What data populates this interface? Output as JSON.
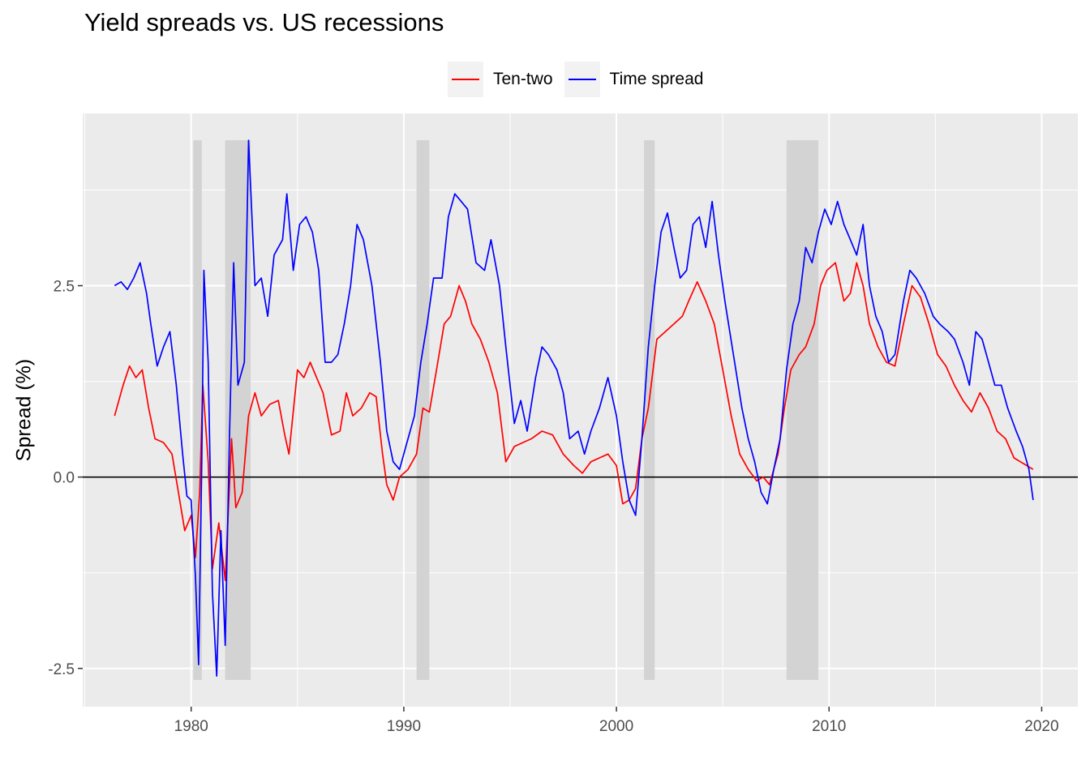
{
  "chart_data": {
    "type": "line",
    "title": "Yield spreads vs. US recessions",
    "ylabel": "Spread (%)",
    "xlabel": "",
    "xlim": [
      1974.9,
      2021.7
    ],
    "ylim": [
      -3.0,
      4.75
    ],
    "x_ticks": [
      1980,
      1990,
      2000,
      2010,
      2020
    ],
    "y_ticks": [
      -2.5,
      0.0,
      2.5
    ],
    "x_tick_labels": [
      "1980",
      "1990",
      "2000",
      "2010",
      "2020"
    ],
    "y_tick_labels": [
      "-2.5",
      "0.0",
      "2.5"
    ],
    "grid": true,
    "legend_position": "top",
    "hline_y": 0,
    "recessions": [
      {
        "start": 1980.1,
        "end": 1980.5
      },
      {
        "start": 1981.6,
        "end": 1982.8
      },
      {
        "start": 1990.6,
        "end": 1991.2
      },
      {
        "start": 2001.3,
        "end": 2001.8
      },
      {
        "start": 2008.0,
        "end": 2009.5
      }
    ],
    "recession_band": [
      -2.65,
      4.4
    ],
    "series": [
      {
        "name": "Ten-two",
        "color": "#ff0000",
        "points": [
          [
            1976.4,
            0.8
          ],
          [
            1976.8,
            1.2
          ],
          [
            1977.1,
            1.45
          ],
          [
            1977.4,
            1.3
          ],
          [
            1977.7,
            1.4
          ],
          [
            1978.0,
            0.9
          ],
          [
            1978.3,
            0.5
          ],
          [
            1978.7,
            0.45
          ],
          [
            1979.1,
            0.3
          ],
          [
            1979.4,
            -0.2
          ],
          [
            1979.7,
            -0.7
          ],
          [
            1980.0,
            -0.5
          ],
          [
            1980.2,
            -1.05
          ],
          [
            1980.4,
            -0.2
          ],
          [
            1980.55,
            1.2
          ],
          [
            1980.8,
            0.2
          ],
          [
            1981.0,
            -1.2
          ],
          [
            1981.3,
            -0.6
          ],
          [
            1981.6,
            -1.35
          ],
          [
            1981.9,
            0.5
          ],
          [
            1982.1,
            -0.4
          ],
          [
            1982.4,
            -0.2
          ],
          [
            1982.7,
            0.8
          ],
          [
            1983.0,
            1.1
          ],
          [
            1983.3,
            0.8
          ],
          [
            1983.7,
            0.95
          ],
          [
            1984.1,
            1.0
          ],
          [
            1984.4,
            0.55
          ],
          [
            1984.6,
            0.3
          ],
          [
            1985.0,
            1.4
          ],
          [
            1985.3,
            1.3
          ],
          [
            1985.6,
            1.5
          ],
          [
            1985.9,
            1.3
          ],
          [
            1986.2,
            1.1
          ],
          [
            1986.6,
            0.55
          ],
          [
            1987.0,
            0.6
          ],
          [
            1987.3,
            1.1
          ],
          [
            1987.6,
            0.8
          ],
          [
            1988.0,
            0.9
          ],
          [
            1988.4,
            1.1
          ],
          [
            1988.7,
            1.05
          ],
          [
            1989.0,
            0.3
          ],
          [
            1989.2,
            -0.1
          ],
          [
            1989.5,
            -0.3
          ],
          [
            1989.8,
            0.0
          ],
          [
            1990.2,
            0.1
          ],
          [
            1990.6,
            0.3
          ],
          [
            1990.9,
            0.9
          ],
          [
            1991.2,
            0.85
          ],
          [
            1991.6,
            1.5
          ],
          [
            1991.9,
            2.0
          ],
          [
            1992.2,
            2.1
          ],
          [
            1992.6,
            2.5
          ],
          [
            1992.9,
            2.3
          ],
          [
            1993.2,
            2.0
          ],
          [
            1993.6,
            1.8
          ],
          [
            1994.0,
            1.5
          ],
          [
            1994.4,
            1.1
          ],
          [
            1994.8,
            0.2
          ],
          [
            1995.2,
            0.4
          ],
          [
            1995.6,
            0.45
          ],
          [
            1996.0,
            0.5
          ],
          [
            1996.5,
            0.6
          ],
          [
            1997.0,
            0.55
          ],
          [
            1997.5,
            0.3
          ],
          [
            1998.0,
            0.15
          ],
          [
            1998.4,
            0.05
          ],
          [
            1998.8,
            0.2
          ],
          [
            1999.2,
            0.25
          ],
          [
            1999.6,
            0.3
          ],
          [
            2000.0,
            0.15
          ],
          [
            2000.3,
            -0.35
          ],
          [
            2000.6,
            -0.3
          ],
          [
            2000.9,
            -0.15
          ],
          [
            2001.2,
            0.5
          ],
          [
            2001.5,
            0.9
          ],
          [
            2001.9,
            1.8
          ],
          [
            2002.3,
            1.9
          ],
          [
            2002.7,
            2.0
          ],
          [
            2003.1,
            2.1
          ],
          [
            2003.4,
            2.3
          ],
          [
            2003.8,
            2.55
          ],
          [
            2004.2,
            2.3
          ],
          [
            2004.6,
            2.0
          ],
          [
            2005.0,
            1.4
          ],
          [
            2005.4,
            0.8
          ],
          [
            2005.8,
            0.3
          ],
          [
            2006.2,
            0.1
          ],
          [
            2006.6,
            -0.05
          ],
          [
            2006.9,
            0.0
          ],
          [
            2007.2,
            -0.1
          ],
          [
            2007.6,
            0.3
          ],
          [
            2007.9,
            0.9
          ],
          [
            2008.2,
            1.4
          ],
          [
            2008.6,
            1.6
          ],
          [
            2008.9,
            1.7
          ],
          [
            2009.3,
            2.0
          ],
          [
            2009.6,
            2.5
          ],
          [
            2009.9,
            2.7
          ],
          [
            2010.3,
            2.8
          ],
          [
            2010.7,
            2.3
          ],
          [
            2011.0,
            2.4
          ],
          [
            2011.3,
            2.8
          ],
          [
            2011.6,
            2.5
          ],
          [
            2011.9,
            2.0
          ],
          [
            2012.3,
            1.7
          ],
          [
            2012.7,
            1.5
          ],
          [
            2013.1,
            1.45
          ],
          [
            2013.5,
            2.0
          ],
          [
            2013.9,
            2.5
          ],
          [
            2014.3,
            2.35
          ],
          [
            2014.7,
            2.0
          ],
          [
            2015.1,
            1.6
          ],
          [
            2015.5,
            1.45
          ],
          [
            2015.9,
            1.2
          ],
          [
            2016.3,
            1.0
          ],
          [
            2016.7,
            0.85
          ],
          [
            2017.1,
            1.1
          ],
          [
            2017.5,
            0.9
          ],
          [
            2017.9,
            0.6
          ],
          [
            2018.3,
            0.5
          ],
          [
            2018.7,
            0.25
          ],
          [
            2019.0,
            0.2
          ],
          [
            2019.3,
            0.15
          ],
          [
            2019.6,
            0.1
          ]
        ]
      },
      {
        "name": "Time spread",
        "color": "#0000ff",
        "points": [
          [
            1976.4,
            2.5
          ],
          [
            1976.7,
            2.55
          ],
          [
            1977.0,
            2.45
          ],
          [
            1977.3,
            2.6
          ],
          [
            1977.6,
            2.8
          ],
          [
            1977.9,
            2.4
          ],
          [
            1978.1,
            2.0
          ],
          [
            1978.4,
            1.45
          ],
          [
            1978.7,
            1.7
          ],
          [
            1979.0,
            1.9
          ],
          [
            1979.3,
            1.2
          ],
          [
            1979.6,
            0.3
          ],
          [
            1979.8,
            -0.25
          ],
          [
            1980.0,
            -0.3
          ],
          [
            1980.2,
            -1.3
          ],
          [
            1980.35,
            -2.45
          ],
          [
            1980.5,
            0.2
          ],
          [
            1980.6,
            2.7
          ],
          [
            1980.8,
            1.5
          ],
          [
            1981.0,
            -1.5
          ],
          [
            1981.2,
            -2.6
          ],
          [
            1981.4,
            -0.7
          ],
          [
            1981.6,
            -2.2
          ],
          [
            1981.8,
            0.5
          ],
          [
            1982.0,
            2.8
          ],
          [
            1982.2,
            1.2
          ],
          [
            1982.5,
            1.5
          ],
          [
            1982.7,
            4.4
          ],
          [
            1983.0,
            2.5
          ],
          [
            1983.3,
            2.6
          ],
          [
            1983.6,
            2.1
          ],
          [
            1983.9,
            2.9
          ],
          [
            1984.3,
            3.1
          ],
          [
            1984.5,
            3.7
          ],
          [
            1984.8,
            2.7
          ],
          [
            1985.1,
            3.3
          ],
          [
            1985.4,
            3.4
          ],
          [
            1985.7,
            3.2
          ],
          [
            1986.0,
            2.7
          ],
          [
            1986.3,
            1.5
          ],
          [
            1986.6,
            1.5
          ],
          [
            1986.9,
            1.6
          ],
          [
            1987.2,
            2.0
          ],
          [
            1987.5,
            2.5
          ],
          [
            1987.8,
            3.3
          ],
          [
            1988.1,
            3.1
          ],
          [
            1988.5,
            2.5
          ],
          [
            1988.9,
            1.5
          ],
          [
            1989.2,
            0.6
          ],
          [
            1989.5,
            0.2
          ],
          [
            1989.8,
            0.1
          ],
          [
            1990.2,
            0.5
          ],
          [
            1990.5,
            0.8
          ],
          [
            1990.8,
            1.5
          ],
          [
            1991.1,
            2.0
          ],
          [
            1991.4,
            2.6
          ],
          [
            1991.8,
            2.6
          ],
          [
            1992.1,
            3.4
          ],
          [
            1992.4,
            3.7
          ],
          [
            1992.7,
            3.6
          ],
          [
            1993.0,
            3.5
          ],
          [
            1993.4,
            2.8
          ],
          [
            1993.8,
            2.7
          ],
          [
            1994.1,
            3.1
          ],
          [
            1994.5,
            2.5
          ],
          [
            1994.8,
            1.7
          ],
          [
            1995.2,
            0.7
          ],
          [
            1995.5,
            1.0
          ],
          [
            1995.8,
            0.6
          ],
          [
            1996.2,
            1.3
          ],
          [
            1996.5,
            1.7
          ],
          [
            1996.8,
            1.6
          ],
          [
            1997.2,
            1.4
          ],
          [
            1997.5,
            1.1
          ],
          [
            1997.8,
            0.5
          ],
          [
            1998.2,
            0.6
          ],
          [
            1998.5,
            0.3
          ],
          [
            1998.8,
            0.6
          ],
          [
            1999.2,
            0.9
          ],
          [
            1999.6,
            1.3
          ],
          [
            2000.0,
            0.8
          ],
          [
            2000.3,
            0.2
          ],
          [
            2000.6,
            -0.3
          ],
          [
            2000.9,
            -0.5
          ],
          [
            2001.2,
            0.5
          ],
          [
            2001.5,
            1.7
          ],
          [
            2001.8,
            2.5
          ],
          [
            2002.1,
            3.2
          ],
          [
            2002.4,
            3.45
          ],
          [
            2002.7,
            3.0
          ],
          [
            2003.0,
            2.6
          ],
          [
            2003.3,
            2.7
          ],
          [
            2003.6,
            3.3
          ],
          [
            2003.9,
            3.4
          ],
          [
            2004.2,
            3.0
          ],
          [
            2004.5,
            3.6
          ],
          [
            2004.8,
            2.9
          ],
          [
            2005.1,
            2.3
          ],
          [
            2005.5,
            1.6
          ],
          [
            2005.9,
            0.9
          ],
          [
            2006.2,
            0.5
          ],
          [
            2006.5,
            0.2
          ],
          [
            2006.8,
            -0.2
          ],
          [
            2007.1,
            -0.35
          ],
          [
            2007.4,
            0.1
          ],
          [
            2007.7,
            0.5
          ],
          [
            2008.0,
            1.4
          ],
          [
            2008.3,
            2.0
          ],
          [
            2008.6,
            2.3
          ],
          [
            2008.9,
            3.0
          ],
          [
            2009.2,
            2.8
          ],
          [
            2009.5,
            3.2
          ],
          [
            2009.8,
            3.5
          ],
          [
            2010.1,
            3.3
          ],
          [
            2010.4,
            3.6
          ],
          [
            2010.7,
            3.3
          ],
          [
            2011.0,
            3.1
          ],
          [
            2011.3,
            2.9
          ],
          [
            2011.6,
            3.3
          ],
          [
            2011.9,
            2.5
          ],
          [
            2012.2,
            2.1
          ],
          [
            2012.5,
            1.9
          ],
          [
            2012.8,
            1.5
          ],
          [
            2013.1,
            1.6
          ],
          [
            2013.5,
            2.3
          ],
          [
            2013.8,
            2.7
          ],
          [
            2014.1,
            2.6
          ],
          [
            2014.5,
            2.4
          ],
          [
            2014.9,
            2.1
          ],
          [
            2015.2,
            2.0
          ],
          [
            2015.6,
            1.9
          ],
          [
            2015.9,
            1.8
          ],
          [
            2016.3,
            1.5
          ],
          [
            2016.6,
            1.2
          ],
          [
            2016.9,
            1.9
          ],
          [
            2017.2,
            1.8
          ],
          [
            2017.5,
            1.5
          ],
          [
            2017.8,
            1.2
          ],
          [
            2018.1,
            1.2
          ],
          [
            2018.4,
            0.9
          ],
          [
            2018.8,
            0.6
          ],
          [
            2019.1,
            0.4
          ],
          [
            2019.4,
            0.1
          ],
          [
            2019.6,
            -0.3
          ]
        ]
      }
    ]
  }
}
